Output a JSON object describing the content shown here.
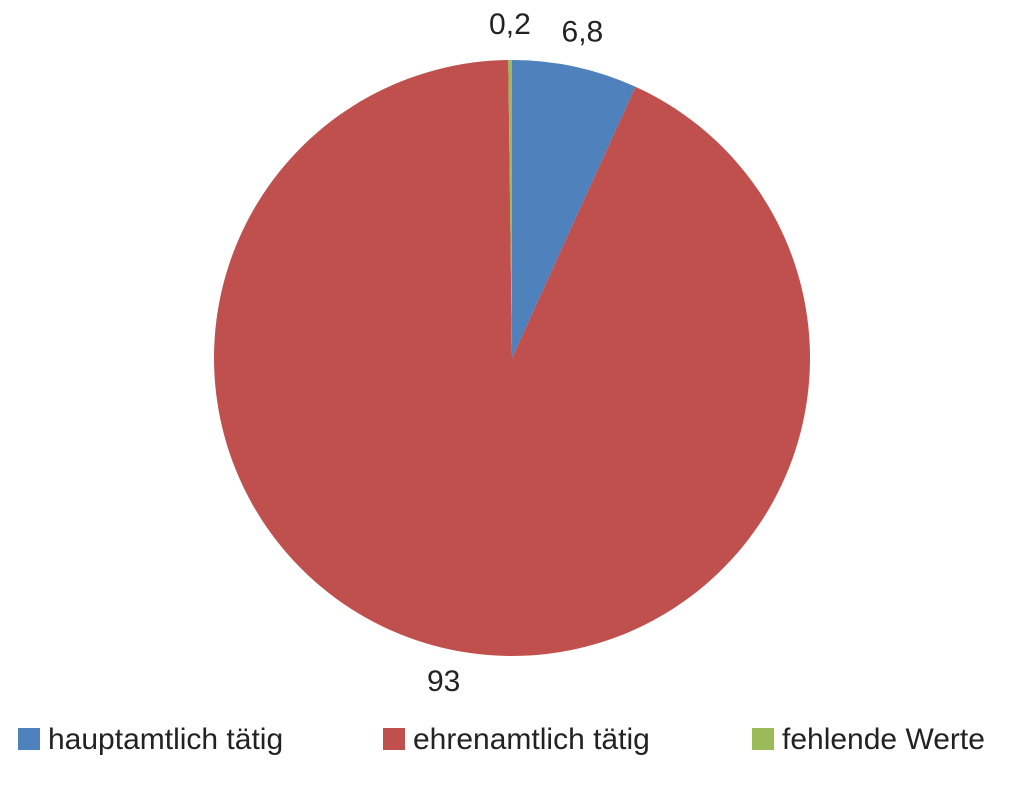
{
  "chart_data": {
    "type": "pie",
    "categories": [
      "hauptamtlich tätig",
      "ehrenamtlich tätig",
      "fehlende Werte"
    ],
    "values": [
      6.8,
      93,
      0.2
    ],
    "value_labels": [
      "6,8",
      "93",
      "0,2"
    ],
    "colors": [
      "#4f81bd",
      "#c0504d",
      "#9bbb59"
    ],
    "legend": "bottom"
  }
}
